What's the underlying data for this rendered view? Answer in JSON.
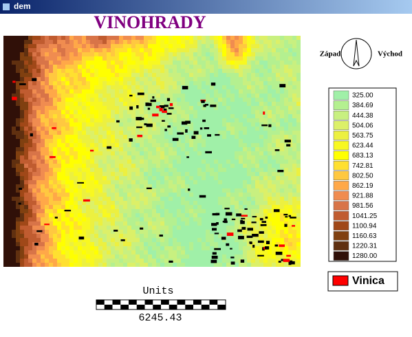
{
  "window_title": "dem",
  "map": {
    "title": "VINOHRADY"
  },
  "north_arrow": {
    "west": "Západ",
    "east": "Východ"
  },
  "legend": {
    "items": [
      {
        "label": "325.00",
        "color": "#a0f0a8"
      },
      {
        "label": "384.69",
        "color": "#b4f090"
      },
      {
        "label": "444.38",
        "color": "#c8f080"
      },
      {
        "label": "504.06",
        "color": "#dcf068"
      },
      {
        "label": "563.75",
        "color": "#ecf040"
      },
      {
        "label": "623.44",
        "color": "#f8f820"
      },
      {
        "label": "683.13",
        "color": "#ffff00"
      },
      {
        "label": "742.81",
        "color": "#ffe030"
      },
      {
        "label": "802.50",
        "color": "#ffc840"
      },
      {
        "label": "862.19",
        "color": "#ffa848"
      },
      {
        "label": "921.88",
        "color": "#f08c50"
      },
      {
        "label": "981.56",
        "color": "#d87448"
      },
      {
        "label": "1041.25",
        "color": "#c05c30"
      },
      {
        "label": "1100.94",
        "color": "#a04818"
      },
      {
        "label": "1160.63",
        "color": "#804010"
      },
      {
        "label": "1220.31",
        "color": "#603010"
      },
      {
        "label": "1280.00",
        "color": "#301008"
      }
    ]
  },
  "layer_legend": {
    "label": "Vinica",
    "color": "#ff0000"
  },
  "scale_bar": {
    "units": "Units",
    "length": "6245.43"
  }
}
